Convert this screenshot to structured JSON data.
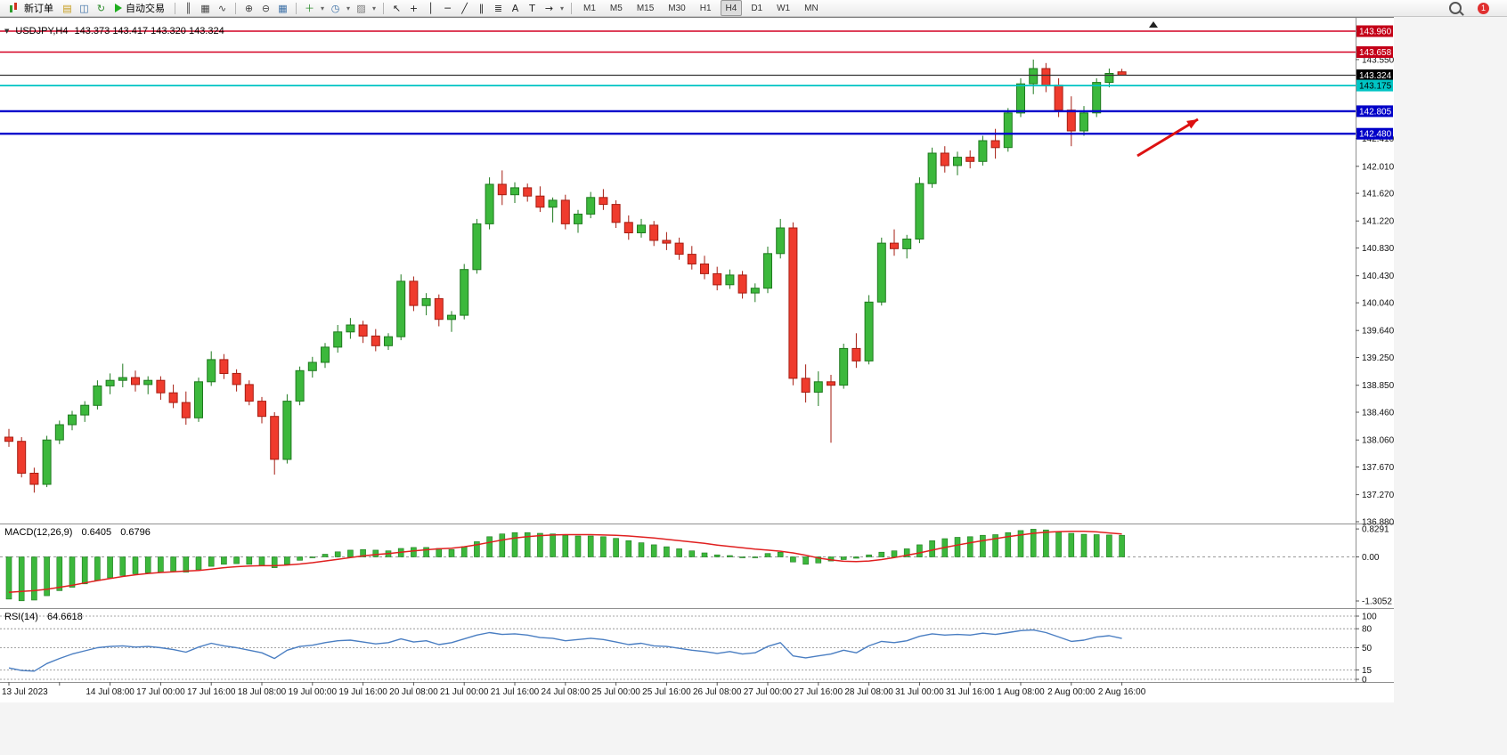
{
  "toolbar": {
    "new_order_label": "新订单",
    "autotrade_label": "自动交易",
    "notification_count": "1",
    "timeframes": [
      "M1",
      "M5",
      "M15",
      "M30",
      "H1",
      "H4",
      "D1",
      "W1",
      "MN"
    ],
    "active_timeframe": "H4",
    "icon_groups": {
      "left": [
        {
          "name": "new-chart-icon",
          "glyph": "▤",
          "color": "#c49a16"
        },
        {
          "name": "profiles-icon",
          "glyph": "◫",
          "color": "#3a6ea5"
        },
        {
          "name": "refresh-icon",
          "glyph": "↻",
          "color": "#2c8c2c"
        }
      ],
      "chart_types": [
        {
          "name": "bar-chart-icon",
          "glyph": "║",
          "color": "#444444"
        },
        {
          "name": "candlestick-chart-icon",
          "glyph": "▦",
          "color": "#444444"
        },
        {
          "name": "line-chart-icon",
          "glyph": "∿",
          "color": "#444444"
        }
      ],
      "zoom": [
        {
          "name": "zoom-in-icon",
          "glyph": "⊕",
          "color": "#444444"
        },
        {
          "name": "zoom-out-icon",
          "glyph": "⊖",
          "color": "#444444"
        },
        {
          "name": "tile-windows-icon",
          "glyph": "▦",
          "color": "#3a6ea5"
        }
      ],
      "tools": [
        {
          "name": "indicators-icon",
          "glyph": "＋",
          "color": "#2c8c2c"
        },
        {
          "name": "indicators-dropdown-caret",
          "glyph": "▾",
          "small": true
        },
        {
          "name": "periods-icon",
          "glyph": "◷",
          "color": "#3a6ea5"
        },
        {
          "name": "periods-dropdown-caret",
          "glyph": "▾",
          "small": true
        },
        {
          "name": "templates-icon",
          "glyph": "▨",
          "color": "#777777"
        },
        {
          "name": "templates-dropdown-caret",
          "glyph": "▾",
          "small": true
        }
      ],
      "drawing": [
        {
          "name": "cursor-icon",
          "glyph": "↖",
          "color": "#222222"
        },
        {
          "name": "crosshair-icon",
          "glyph": "+",
          "color": "#222222"
        },
        {
          "name": "vertical-line-icon",
          "glyph": "│",
          "color": "#222222"
        },
        {
          "name": "horizontal-line-icon",
          "glyph": "─",
          "color": "#222222"
        },
        {
          "name": "trendline-icon",
          "glyph": "╱",
          "color": "#222222"
        },
        {
          "name": "channel-icon",
          "glyph": "∥",
          "color": "#222222"
        },
        {
          "name": "fibonacci-icon",
          "glyph": "≣",
          "color": "#222222"
        },
        {
          "name": "text-icon",
          "glyph": "A",
          "color": "#222222"
        },
        {
          "name": "label-icon",
          "glyph": "T",
          "color": "#222222"
        },
        {
          "name": "arrows-icon",
          "glyph": "→",
          "color": "#222222"
        },
        {
          "name": "arrows-dropdown-caret",
          "glyph": "▾",
          "small": true
        }
      ]
    }
  },
  "chart": {
    "collapse_glyph": "▼",
    "symbol_tf": "USDJPY,H4",
    "ohlc_text": "143.373 143.417 143.320 143.324"
  },
  "panels": {
    "macd": {
      "title": "MACD(12,26,9)",
      "value_main": "0.6405",
      "value_signal": "0.6796"
    },
    "rsi": {
      "title": "RSI(14)",
      "value": "64.6618"
    }
  },
  "chart_data": {
    "type": "candlestick",
    "symbol": "USDJPY",
    "timeframe": "H4",
    "ylim": [
      136.854,
      144.153
    ],
    "up_color": "#3cb83c",
    "down_color": "#ef3b2d",
    "ohlc": [
      [
        138.1,
        138.22,
        137.96,
        138.04
      ],
      [
        138.04,
        138.1,
        137.52,
        137.58
      ],
      [
        137.58,
        137.66,
        137.3,
        137.42
      ],
      [
        137.42,
        138.12,
        137.38,
        138.06
      ],
      [
        138.06,
        138.34,
        138.0,
        138.28
      ],
      [
        138.28,
        138.48,
        138.2,
        138.42
      ],
      [
        138.42,
        138.62,
        138.32,
        138.56
      ],
      [
        138.56,
        138.92,
        138.5,
        138.84
      ],
      [
        138.84,
        139.02,
        138.72,
        138.92
      ],
      [
        138.92,
        139.16,
        138.82,
        138.96
      ],
      [
        138.96,
        139.06,
        138.76,
        138.86
      ],
      [
        138.86,
        138.98,
        138.72,
        138.92
      ],
      [
        138.92,
        138.98,
        138.64,
        138.74
      ],
      [
        138.74,
        138.86,
        138.52,
        138.6
      ],
      [
        138.6,
        138.76,
        138.28,
        138.38
      ],
      [
        138.38,
        138.96,
        138.32,
        138.9
      ],
      [
        138.9,
        139.34,
        138.84,
        139.22
      ],
      [
        139.22,
        139.3,
        138.94,
        139.02
      ],
      [
        139.02,
        139.08,
        138.76,
        138.86
      ],
      [
        138.86,
        138.92,
        138.56,
        138.62
      ],
      [
        138.62,
        138.68,
        138.3,
        138.4
      ],
      [
        138.4,
        138.46,
        137.56,
        137.78
      ],
      [
        137.78,
        138.72,
        137.72,
        138.62
      ],
      [
        138.62,
        139.12,
        138.56,
        139.06
      ],
      [
        139.06,
        139.26,
        138.96,
        139.18
      ],
      [
        139.18,
        139.46,
        139.1,
        139.4
      ],
      [
        139.4,
        139.72,
        139.32,
        139.62
      ],
      [
        139.62,
        139.82,
        139.52,
        139.72
      ],
      [
        139.72,
        139.78,
        139.46,
        139.56
      ],
      [
        139.56,
        139.66,
        139.34,
        139.42
      ],
      [
        139.42,
        139.6,
        139.36,
        139.55
      ],
      [
        139.55,
        140.45,
        139.5,
        140.35
      ],
      [
        140.35,
        140.42,
        139.92,
        140.0
      ],
      [
        140.0,
        140.18,
        139.86,
        140.1
      ],
      [
        140.1,
        140.16,
        139.7,
        139.8
      ],
      [
        139.8,
        139.92,
        139.62,
        139.86
      ],
      [
        139.86,
        140.6,
        139.8,
        140.52
      ],
      [
        140.52,
        141.25,
        140.46,
        141.18
      ],
      [
        141.18,
        141.85,
        141.1,
        141.75
      ],
      [
        141.75,
        141.95,
        141.45,
        141.6
      ],
      [
        141.6,
        141.78,
        141.48,
        141.7
      ],
      [
        141.7,
        141.76,
        141.5,
        141.58
      ],
      [
        141.58,
        141.72,
        141.35,
        141.42
      ],
      [
        141.42,
        141.56,
        141.2,
        141.52
      ],
      [
        141.52,
        141.6,
        141.1,
        141.18
      ],
      [
        141.18,
        141.38,
        141.05,
        141.32
      ],
      [
        141.32,
        141.64,
        141.26,
        141.56
      ],
      [
        141.56,
        141.68,
        141.38,
        141.46
      ],
      [
        141.46,
        141.52,
        141.12,
        141.2
      ],
      [
        141.2,
        141.3,
        140.95,
        141.05
      ],
      [
        141.05,
        141.25,
        140.98,
        141.16
      ],
      [
        141.16,
        141.22,
        140.86,
        140.94
      ],
      [
        140.94,
        141.06,
        140.8,
        140.9
      ],
      [
        140.9,
        140.98,
        140.66,
        140.74
      ],
      [
        140.74,
        140.86,
        140.52,
        140.6
      ],
      [
        140.6,
        140.72,
        140.38,
        140.46
      ],
      [
        140.46,
        140.56,
        140.22,
        140.3
      ],
      [
        140.3,
        140.52,
        140.24,
        140.44
      ],
      [
        140.44,
        140.5,
        140.1,
        140.18
      ],
      [
        140.18,
        140.32,
        140.05,
        140.25
      ],
      [
        140.25,
        140.85,
        140.18,
        140.75
      ],
      [
        140.75,
        141.25,
        140.68,
        141.12
      ],
      [
        141.12,
        141.2,
        138.85,
        138.95
      ],
      [
        138.95,
        139.15,
        138.6,
        138.75
      ],
      [
        138.75,
        139.05,
        138.55,
        138.9
      ],
      [
        138.9,
        139.0,
        138.02,
        138.85
      ],
      [
        138.85,
        139.45,
        138.8,
        139.38
      ],
      [
        139.38,
        139.6,
        139.1,
        139.2
      ],
      [
        139.2,
        140.15,
        139.15,
        140.05
      ],
      [
        140.05,
        140.98,
        140.0,
        140.9
      ],
      [
        140.9,
        141.1,
        140.72,
        140.82
      ],
      [
        140.82,
        141.02,
        140.68,
        140.96
      ],
      [
        140.96,
        141.85,
        140.9,
        141.76
      ],
      [
        141.76,
        142.28,
        141.7,
        142.2
      ],
      [
        142.2,
        142.3,
        141.92,
        142.02
      ],
      [
        142.02,
        142.22,
        141.88,
        142.14
      ],
      [
        142.14,
        142.24,
        141.98,
        142.08
      ],
      [
        142.08,
        142.45,
        142.02,
        142.38
      ],
      [
        142.38,
        142.55,
        142.12,
        142.28
      ],
      [
        142.28,
        142.85,
        142.22,
        142.78
      ],
      [
        142.78,
        143.28,
        142.72,
        143.2
      ],
      [
        143.2,
        143.55,
        143.05,
        143.42
      ],
      [
        143.42,
        143.5,
        143.08,
        143.18
      ],
      [
        143.18,
        143.28,
        142.72,
        142.82
      ],
      [
        142.82,
        143.02,
        142.3,
        142.52
      ],
      [
        142.52,
        142.88,
        142.45,
        142.78
      ],
      [
        142.78,
        143.28,
        142.72,
        143.22
      ],
      [
        143.22,
        143.42,
        143.15,
        143.35
      ],
      [
        143.373,
        143.417,
        143.32,
        143.324
      ]
    ],
    "hlines": [
      {
        "price": 143.96,
        "color": "#d40022",
        "width": 1.6,
        "label": "143.960",
        "label_bg": "#c40018",
        "label_fg": "#ffffff"
      },
      {
        "price": 143.658,
        "color": "#d40022",
        "width": 1.6,
        "label": "143.658",
        "label_bg": "#c40018",
        "label_fg": "#ffffff"
      },
      {
        "price": 143.324,
        "color": "#333333",
        "width": 1.2,
        "label": "143.324",
        "label_bg": "#000000",
        "label_fg": "#ffffff"
      },
      {
        "price": 143.175,
        "color": "#00c4c4",
        "width": 1.8,
        "label": "143.175",
        "label_bg": "#00c4c4",
        "label_fg": "#000000"
      },
      {
        "price": 142.805,
        "color": "#0000cc",
        "width": 2.4,
        "label": "142.805",
        "label_bg": "#0000c8",
        "label_fg": "#ffffff"
      },
      {
        "price": 142.48,
        "color": "#0000cc",
        "width": 2.4,
        "label": "142.480",
        "label_bg": "#0000c8",
        "label_fg": "#ffffff"
      }
    ],
    "axis_labels": [
      {
        "price": 143.55,
        "text": "143.550"
      },
      {
        "price": 142.41,
        "text": "142.410"
      },
      {
        "price": 142.01,
        "text": "142.010"
      },
      {
        "price": 141.62,
        "text": "141.620"
      },
      {
        "price": 141.22,
        "text": "141.220"
      },
      {
        "price": 140.83,
        "text": "140.830"
      },
      {
        "price": 140.43,
        "text": "140.430"
      },
      {
        "price": 140.04,
        "text": "140.040"
      },
      {
        "price": 139.64,
        "text": "139.640"
      },
      {
        "price": 139.25,
        "text": "139.250"
      },
      {
        "price": 138.85,
        "text": "138.850"
      },
      {
        "price": 138.46,
        "text": "138.460"
      },
      {
        "price": 138.06,
        "text": "138.060"
      },
      {
        "price": 137.67,
        "text": "137.670"
      },
      {
        "price": 137.27,
        "text": "137.270"
      },
      {
        "price": 136.88,
        "text": "136.880"
      }
    ],
    "time_labels": [
      {
        "bar": 0,
        "text": "13 Jul 2023"
      },
      {
        "bar": 8,
        "text": "14 Jul 08:00"
      },
      {
        "bar": 12,
        "text": "17 Jul 00:00"
      },
      {
        "bar": 16,
        "text": "17 Jul 16:00"
      },
      {
        "bar": 20,
        "text": "18 Jul 08:00"
      },
      {
        "bar": 24,
        "text": "19 Jul 00:00"
      },
      {
        "bar": 28,
        "text": "19 Jul 16:00"
      },
      {
        "bar": 32,
        "text": "20 Jul 08:00"
      },
      {
        "bar": 36,
        "text": "21 Jul 00:00"
      },
      {
        "bar": 40,
        "text": "21 Jul 16:00"
      },
      {
        "bar": 44,
        "text": "24 Jul 08:00"
      },
      {
        "bar": 48,
        "text": "25 Jul 00:00"
      },
      {
        "bar": 52,
        "text": "25 Jul 16:00"
      },
      {
        "bar": 56,
        "text": "26 Jul 08:00"
      },
      {
        "bar": 60,
        "text": "27 Jul 00:00"
      },
      {
        "bar": 64,
        "text": "27 Jul 16:00"
      },
      {
        "bar": 68,
        "text": "28 Jul 08:00"
      },
      {
        "bar": 72,
        "text": "31 Jul 00:00"
      },
      {
        "bar": 76,
        "text": "31 Jul 16:00"
      },
      {
        "bar": 80,
        "text": "1 Aug 08:00"
      },
      {
        "bar": 84,
        "text": "2 Aug 00:00"
      },
      {
        "bar": 88,
        "text": "2 Aug 16:00"
      }
    ],
    "indicators": {
      "macd": {
        "vlim": [
          -1.463,
          0.91
        ],
        "hist_color": "#3cb83c",
        "signal_color": "#e02020",
        "scale": [
          {
            "v": 0.8291,
            "text": "0.8291"
          },
          {
            "v": 0,
            "text": "0.00"
          },
          {
            "v": -1.3052,
            "text": "-1.3052"
          }
        ],
        "histogram": [
          -1.25,
          -1.3,
          -1.28,
          -1.15,
          -1.0,
          -0.9,
          -0.8,
          -0.7,
          -0.62,
          -0.55,
          -0.5,
          -0.47,
          -0.45,
          -0.44,
          -0.45,
          -0.38,
          -0.28,
          -0.22,
          -0.2,
          -0.22,
          -0.26,
          -0.32,
          -0.22,
          -0.1,
          0.0,
          0.08,
          0.15,
          0.2,
          0.22,
          0.2,
          0.18,
          0.25,
          0.28,
          0.28,
          0.25,
          0.22,
          0.3,
          0.45,
          0.6,
          0.68,
          0.72,
          0.72,
          0.7,
          0.68,
          0.64,
          0.62,
          0.62,
          0.6,
          0.55,
          0.48,
          0.42,
          0.36,
          0.3,
          0.24,
          0.18,
          0.12,
          0.06,
          0.04,
          0.0,
          -0.02,
          0.1,
          0.14,
          -0.15,
          -0.22,
          -0.18,
          -0.12,
          -0.08,
          -0.04,
          0.06,
          0.14,
          0.18,
          0.24,
          0.36,
          0.48,
          0.54,
          0.58,
          0.6,
          0.64,
          0.66,
          0.72,
          0.78,
          0.82,
          0.8,
          0.74,
          0.7,
          0.67,
          0.66,
          0.65,
          0.6405
        ],
        "signal": [
          -1.05,
          -1.02,
          -1.0,
          -0.96,
          -0.9,
          -0.84,
          -0.77,
          -0.7,
          -0.64,
          -0.58,
          -0.53,
          -0.49,
          -0.46,
          -0.44,
          -0.42,
          -0.4,
          -0.36,
          -0.32,
          -0.29,
          -0.27,
          -0.26,
          -0.26,
          -0.24,
          -0.21,
          -0.17,
          -0.12,
          -0.07,
          -0.02,
          0.03,
          0.07,
          0.1,
          0.14,
          0.18,
          0.21,
          0.24,
          0.26,
          0.3,
          0.36,
          0.43,
          0.5,
          0.56,
          0.6,
          0.63,
          0.65,
          0.66,
          0.66,
          0.66,
          0.65,
          0.64,
          0.62,
          0.59,
          0.56,
          0.52,
          0.48,
          0.44,
          0.4,
          0.35,
          0.31,
          0.27,
          0.23,
          0.2,
          0.17,
          0.12,
          0.05,
          -0.03,
          -0.09,
          -0.13,
          -0.14,
          -0.12,
          -0.08,
          -0.02,
          0.05,
          0.12,
          0.2,
          0.28,
          0.35,
          0.42,
          0.48,
          0.54,
          0.6,
          0.65,
          0.7,
          0.73,
          0.75,
          0.76,
          0.76,
          0.74,
          0.71,
          0.6796
        ]
      },
      "rsi": {
        "color": "#4a7ec2",
        "levels": [
          {
            "v": 100,
            "text": "100"
          },
          {
            "v": 80,
            "text": "80"
          },
          {
            "v": 50,
            "text": "50"
          },
          {
            "v": 15,
            "text": "15"
          },
          {
            "v": 0,
            "text": "0"
          }
        ],
        "values": [
          18,
          14,
          13,
          25,
          33,
          40,
          45,
          50,
          52,
          53,
          51,
          52,
          50,
          47,
          43,
          51,
          57,
          53,
          50,
          46,
          42,
          33,
          46,
          52,
          54,
          58,
          61,
          62,
          59,
          56,
          58,
          64,
          59,
          61,
          55,
          58,
          64,
          70,
          74,
          71,
          72,
          70,
          66,
          65,
          61,
          63,
          65,
          63,
          59,
          55,
          57,
          53,
          52,
          49,
          46,
          44,
          41,
          44,
          40,
          42,
          52,
          58,
          37,
          34,
          37,
          40,
          46,
          42,
          53,
          60,
          58,
          61,
          68,
          72,
          70,
          71,
          70,
          73,
          71,
          74,
          77,
          78,
          74,
          67,
          60,
          62,
          67,
          69,
          64.66
        ]
      }
    },
    "annotation_arrow": {
      "from": [
        1277,
        155
      ],
      "to": [
        1345,
        114
      ],
      "color": "#dd1111"
    }
  }
}
